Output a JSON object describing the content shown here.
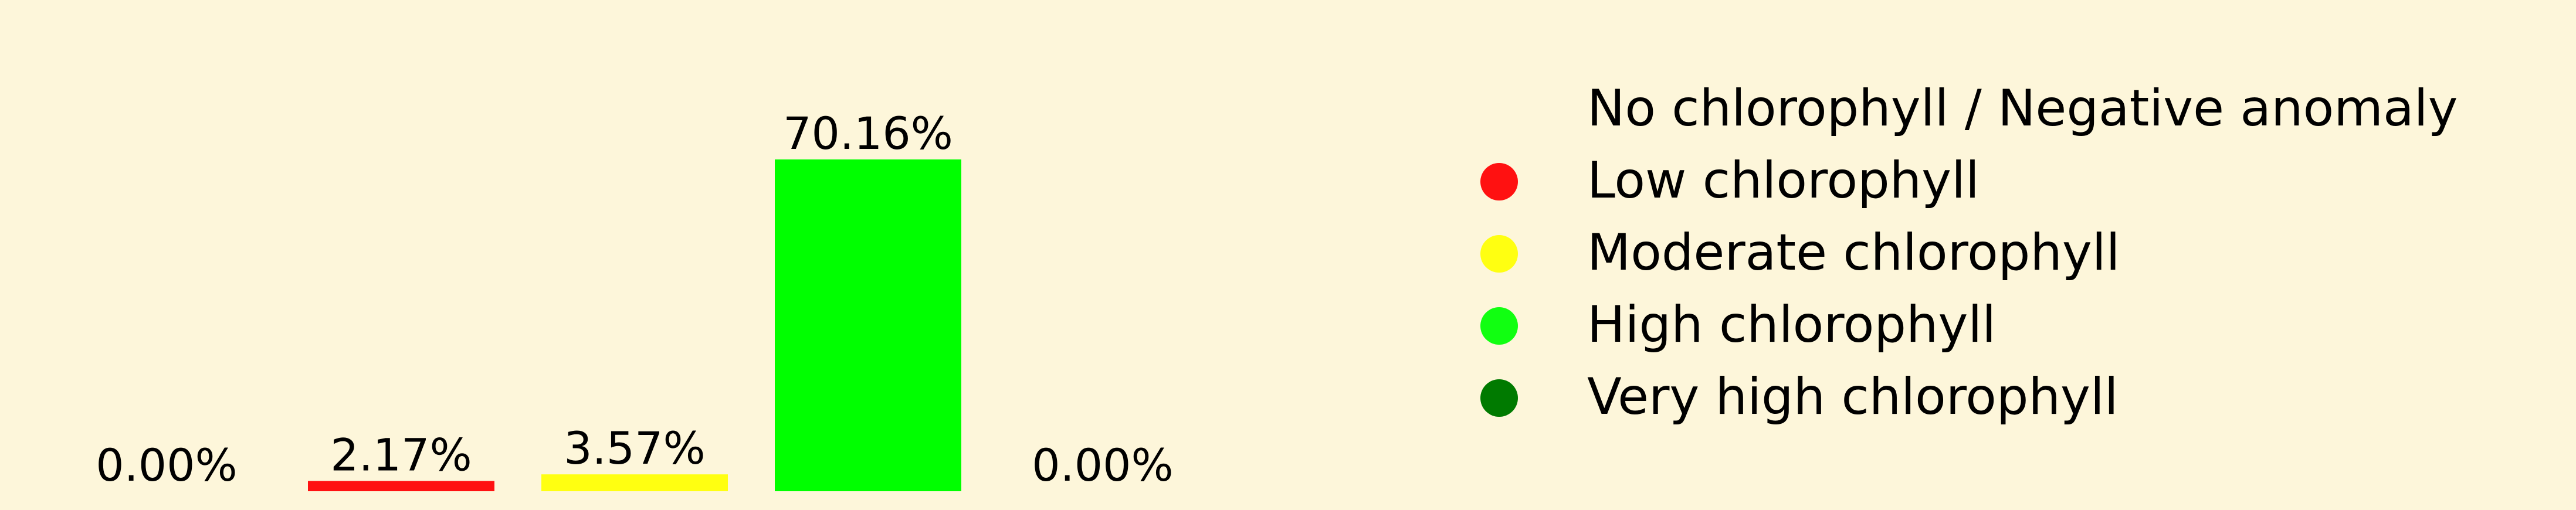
{
  "chart_data": {
    "type": "bar",
    "title": "",
    "xlabel": "",
    "ylabel": "",
    "ylim": [
      0,
      75
    ],
    "grid": false,
    "legend_placement": "right",
    "categories": [
      "No chlorophyll / Negative anomaly",
      "Low chlorophyll",
      "Moderate chlorophyll",
      "High chlorophyll",
      "Very high chlorophyll"
    ],
    "values": [
      0.0,
      2.17,
      3.57,
      70.16,
      0.0
    ],
    "data_labels": [
      "0.00%",
      "2.17%",
      "3.57%",
      "70.16%",
      "0.00%"
    ],
    "colors": [
      "#fdf6da",
      "#ff1111",
      "#ffff11",
      "#00ff00",
      "#007a00"
    ],
    "legend": [
      {
        "label": "No chlorophyll / Negative anomaly",
        "color": "#fdf6da"
      },
      {
        "label": "Low chlorophyll",
        "color": "#ff1111"
      },
      {
        "label": "Moderate chlorophyll",
        "color": "#ffff11"
      },
      {
        "label": "High chlorophyll",
        "color": "#11ff11"
      },
      {
        "label": "Very high chlorophyll",
        "color": "#007a00"
      }
    ]
  }
}
